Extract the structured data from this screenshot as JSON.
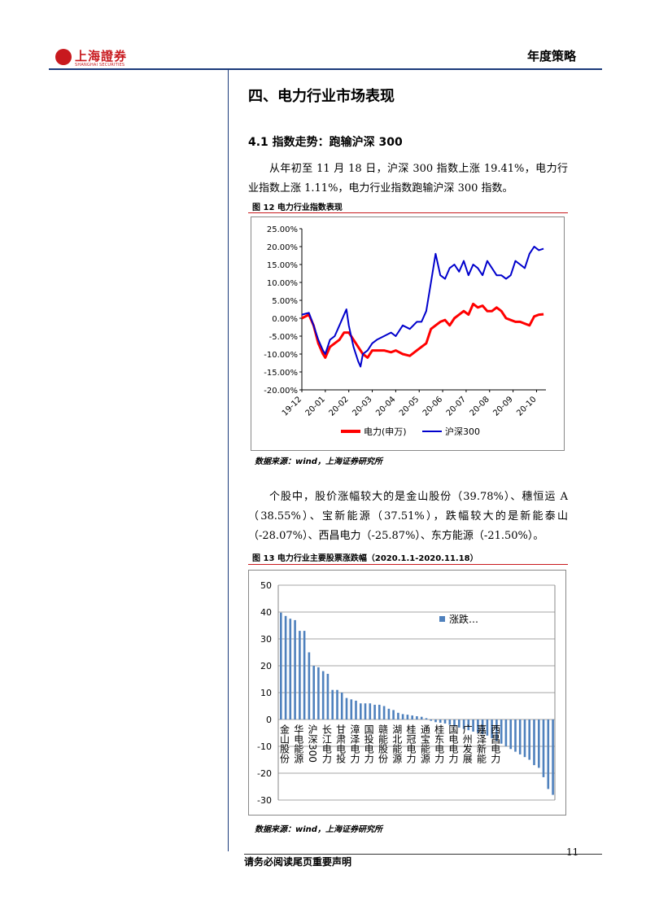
{
  "header": {
    "logo_text": "上海證券",
    "logo_subtext": "SHANGHAI SECURITIES",
    "doc_type": "年度策略"
  },
  "section": {
    "title": "四、电力行业市场表现",
    "subsection_title": "4.1 指数走势：跑输沪深 300",
    "para1": "从年初至 11 月 18 日，沪深 300 指数上涨 19.41%，电力行业指数上涨 1.11%，电力行业指数跑输沪深 300 指数。",
    "para2": "个股中，股价涨幅较大的是金山股份（39.78%）、穗恒运 A（38.55%）、宝新能源（37.51%），跌幅较大的是新能泰山（-28.07%）、西昌电力（-25.87%）、东方能源（-21.50%）。"
  },
  "figure12": {
    "caption": "图  12 电力行业指数表现",
    "source": "数据来源：wind，上海证券研究所"
  },
  "figure13": {
    "caption": "图  13 电力行业主要股票涨跌幅（2020.1.1-2020.11.18）",
    "source": "数据来源：wind，上海证券研究所"
  },
  "footer": {
    "disclaimer": "请务必阅读尾页重要声明",
    "page_number": "11"
  },
  "colors": {
    "brand_red": "#c8191e",
    "series_red": "#ff0000",
    "series_blue": "#0000cc",
    "bar_blue": "#4f81bd"
  },
  "chart_data": [
    {
      "type": "line",
      "x_ticks": [
        "19-12",
        "20-01",
        "20-02",
        "20-03",
        "20-04",
        "20-05",
        "20-06",
        "20-07",
        "20-08",
        "20-09",
        "20-10"
      ],
      "y_ticks": [
        "25.00%",
        "20.00%",
        "15.00%",
        "10.00%",
        "5.00%",
        "0.00%",
        "-5.00%",
        "-10.00%",
        "-15.00%",
        "-20.00%"
      ],
      "ylim": [
        -20,
        25
      ],
      "legend": "bottom",
      "series": [
        {
          "name": "电力(申万)",
          "color": "#ff0000",
          "points": [
            [
              0,
              0
            ],
            [
              0.3,
              1
            ],
            [
              0.5,
              -2
            ],
            [
              0.7,
              -7
            ],
            [
              0.9,
              -10
            ],
            [
              1.0,
              -11
            ],
            [
              1.2,
              -8
            ],
            [
              1.4,
              -7
            ],
            [
              1.6,
              -6
            ],
            [
              1.8,
              -4
            ],
            [
              2.0,
              -4
            ],
            [
              2.2,
              -6
            ],
            [
              2.4,
              -8
            ],
            [
              2.6,
              -10
            ],
            [
              2.8,
              -11
            ],
            [
              3.0,
              -9
            ],
            [
              3.2,
              -9
            ],
            [
              3.5,
              -9
            ],
            [
              3.8,
              -9.5
            ],
            [
              4.0,
              -9
            ],
            [
              4.3,
              -10
            ],
            [
              4.6,
              -10.5
            ],
            [
              4.9,
              -9
            ],
            [
              5.1,
              -8
            ],
            [
              5.3,
              -7
            ],
            [
              5.5,
              -3
            ],
            [
              5.7,
              -2
            ],
            [
              5.9,
              -1
            ],
            [
              6.1,
              -0.5
            ],
            [
              6.3,
              -2
            ],
            [
              6.5,
              0
            ],
            [
              6.7,
              1
            ],
            [
              6.9,
              2
            ],
            [
              7.1,
              1
            ],
            [
              7.3,
              4
            ],
            [
              7.5,
              3
            ],
            [
              7.7,
              3.5
            ],
            [
              7.9,
              2
            ],
            [
              8.1,
              2
            ],
            [
              8.3,
              3
            ],
            [
              8.5,
              2
            ],
            [
              8.7,
              0
            ],
            [
              8.9,
              -0.5
            ],
            [
              9.1,
              -1
            ],
            [
              9.3,
              -1
            ],
            [
              9.5,
              -1.5
            ],
            [
              9.7,
              -2
            ],
            [
              9.9,
              0.5
            ],
            [
              10.1,
              1
            ],
            [
              10.3,
              1.11
            ]
          ]
        },
        {
          "name": "沪深300",
          "color": "#0000cc",
          "points": [
            [
              0,
              1
            ],
            [
              0.3,
              1.5
            ],
            [
              0.5,
              -2
            ],
            [
              0.7,
              -6
            ],
            [
              0.9,
              -9
            ],
            [
              1.0,
              -10
            ],
            [
              1.2,
              -6
            ],
            [
              1.4,
              -5
            ],
            [
              1.6,
              -2
            ],
            [
              1.8,
              1
            ],
            [
              1.9,
              2.5
            ],
            [
              2.0,
              -2
            ],
            [
              2.2,
              -8
            ],
            [
              2.4,
              -12
            ],
            [
              2.5,
              -13.5
            ],
            [
              2.6,
              -10
            ],
            [
              2.8,
              -9
            ],
            [
              3.0,
              -7
            ],
            [
              3.2,
              -6
            ],
            [
              3.5,
              -5
            ],
            [
              3.8,
              -4
            ],
            [
              4.0,
              -5
            ],
            [
              4.3,
              -2
            ],
            [
              4.6,
              -3
            ],
            [
              4.9,
              -1
            ],
            [
              5.1,
              -1
            ],
            [
              5.3,
              2
            ],
            [
              5.5,
              10
            ],
            [
              5.7,
              18
            ],
            [
              5.9,
              12
            ],
            [
              6.1,
              11
            ],
            [
              6.3,
              14
            ],
            [
              6.5,
              15
            ],
            [
              6.7,
              13
            ],
            [
              6.9,
              16
            ],
            [
              7.1,
              12
            ],
            [
              7.3,
              15
            ],
            [
              7.5,
              14
            ],
            [
              7.7,
              12
            ],
            [
              7.9,
              16
            ],
            [
              8.1,
              14
            ],
            [
              8.3,
              12
            ],
            [
              8.5,
              12
            ],
            [
              8.7,
              11
            ],
            [
              8.9,
              12
            ],
            [
              9.1,
              16
            ],
            [
              9.3,
              15
            ],
            [
              9.5,
              14
            ],
            [
              9.7,
              18
            ],
            [
              9.9,
              20
            ],
            [
              10.1,
              19
            ],
            [
              10.3,
              19.41
            ]
          ]
        }
      ]
    },
    {
      "type": "bar",
      "y_ticks": [
        "50",
        "40",
        "30",
        "20",
        "10",
        "0",
        "-10",
        "-20",
        "-30"
      ],
      "ylim": [
        -30,
        50
      ],
      "legend": "涨跌…",
      "category_labels": [
        "金山股份",
        "华电能源",
        "沪深300",
        "长江电力",
        "甘肃电投",
        "漳泽电力",
        "国投电力",
        "赣能股份",
        "湖北能源",
        "桂冠电力",
        "通宝能源",
        "桂东电力",
        "国电电力",
        "广州发展",
        "嘉泽新能",
        "西昌电力"
      ],
      "values": [
        39.78,
        38.55,
        37.51,
        37,
        33,
        33,
        25,
        20,
        19.41,
        18,
        17,
        11,
        11,
        10,
        8,
        7.5,
        7,
        6,
        6,
        6,
        5.5,
        5.5,
        5,
        4,
        3.5,
        2.5,
        2,
        1.8,
        1.5,
        1.2,
        1,
        0.5,
        -0.5,
        -1,
        -1.2,
        -1.5,
        -2,
        -2.5,
        -3,
        -3.5,
        -4,
        -4.5,
        -5,
        -5.5,
        -6,
        -7,
        -8,
        -9,
        -10,
        -11,
        -12,
        -13,
        -14,
        -15,
        -17,
        -18,
        -21.5,
        -25.87,
        -28.07
      ]
    }
  ]
}
